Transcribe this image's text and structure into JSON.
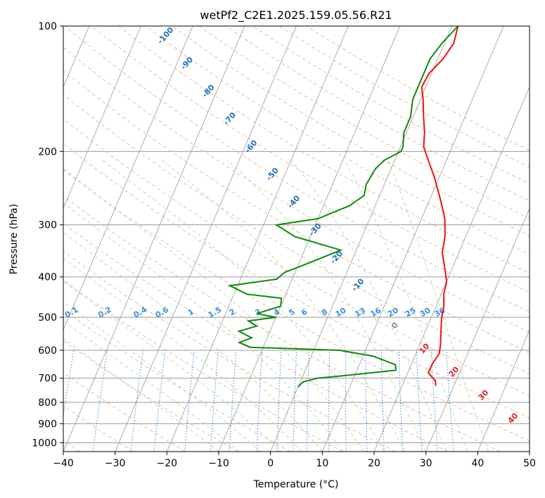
{
  "chart_data": {
    "type": "line",
    "title": "wetPf2_C2E1.2025.159.05.56.R21",
    "xlabel": "Temperature (°C)",
    "ylabel": "Pressure (hPa)",
    "xlim": [
      -40,
      50
    ],
    "ylim": [
      1050,
      100
    ],
    "y_scale": "log",
    "x_ticks": [
      -40,
      -30,
      -20,
      -10,
      0,
      10,
      20,
      30,
      40,
      50
    ],
    "x_tick_labels": [
      "−40",
      "−30",
      "−20",
      "−10",
      "0",
      "10",
      "20",
      "30",
      "40",
      "50"
    ],
    "y_ticks": [
      100,
      200,
      300,
      400,
      500,
      600,
      700,
      800,
      900,
      1000
    ],
    "grid": true,
    "series": [
      {
        "color": "#ee1111",
        "points": [
          [
            1.2,
            100
          ],
          [
            1.8,
            110
          ],
          [
            1.0,
            120
          ],
          [
            -0.5,
            130
          ],
          [
            -0.8,
            140
          ],
          [
            0.5,
            150
          ],
          [
            2.0,
            165
          ],
          [
            3.5,
            180
          ],
          [
            4.5,
            195
          ],
          [
            6.5,
            210
          ],
          [
            9.0,
            230
          ],
          [
            12.0,
            260
          ],
          [
            14.5,
            290
          ],
          [
            16.0,
            320
          ],
          [
            16.8,
            350
          ],
          [
            18.5,
            380
          ],
          [
            20.0,
            410
          ],
          [
            20.5,
            440
          ],
          [
            21.5,
            470
          ],
          [
            22.0,
            500
          ],
          [
            23.0,
            540
          ],
          [
            24.0,
            580
          ],
          [
            24.5,
            610
          ],
          [
            24.0,
            650
          ],
          [
            24.0,
            680
          ],
          [
            26.0,
            710
          ],
          [
            26.5,
            730
          ]
        ]
      },
      {
        "color": "#118811",
        "points": [
          [
            1.2,
            100
          ],
          [
            -0.5,
            110
          ],
          [
            -1.5,
            120
          ],
          [
            -1.5,
            135
          ],
          [
            -1.5,
            150
          ],
          [
            -0.5,
            165
          ],
          [
            -0.5,
            180
          ],
          [
            0.5,
            195
          ],
          [
            0.5,
            200
          ],
          [
            -2.0,
            210
          ],
          [
            -3.0,
            220
          ],
          [
            -3.5,
            240
          ],
          [
            -3.0,
            255
          ],
          [
            -5.0,
            270
          ],
          [
            -10.0,
            290
          ],
          [
            -17.5,
            300
          ],
          [
            -13.0,
            320
          ],
          [
            -3.0,
            345
          ],
          [
            -9.0,
            375
          ],
          [
            -12.0,
            390
          ],
          [
            -13.0,
            405
          ],
          [
            -21.5,
            420
          ],
          [
            -17.5,
            440
          ],
          [
            -10.5,
            450
          ],
          [
            -10.0,
            470
          ],
          [
            -14.0,
            490
          ],
          [
            -10.0,
            500
          ],
          [
            -15.0,
            510
          ],
          [
            -13.0,
            525
          ],
          [
            -16.0,
            540
          ],
          [
            -13.0,
            560
          ],
          [
            -15.0,
            575
          ],
          [
            -12.5,
            590
          ],
          [
            5.0,
            600
          ],
          [
            12.0,
            620
          ],
          [
            17.0,
            650
          ],
          [
            17.5,
            670
          ],
          [
            8.0,
            690
          ],
          [
            3.0,
            700
          ],
          [
            0.5,
            715
          ],
          [
            0.0,
            735
          ]
        ]
      }
    ],
    "dry_adiabat_labels": [
      -100,
      -90,
      -80,
      -70,
      -60,
      -50,
      -40,
      -30,
      -20,
      -10
    ],
    "moist_adiabat_labels": [
      0,
      10,
      20,
      30,
      40
    ],
    "mixing_ratio_labels": [
      "0.1",
      "0.2",
      "0.4",
      "0.6",
      "1",
      "1.5",
      "2",
      "3",
      "4",
      "5",
      "6",
      "8",
      "10",
      "13",
      "16",
      "20",
      "25",
      "30",
      "36"
    ],
    "colors": {
      "temperature": "#ee1111",
      "dewpoint": "#118811",
      "isotherm": "#999999",
      "dry_adiabat": "#f4a582",
      "moist_adiabat": "#a6d8a0",
      "mixing_ratio": "#3a8fe0",
      "dry_label": "#1f6fb4",
      "moist_label": "#d62728"
    }
  }
}
